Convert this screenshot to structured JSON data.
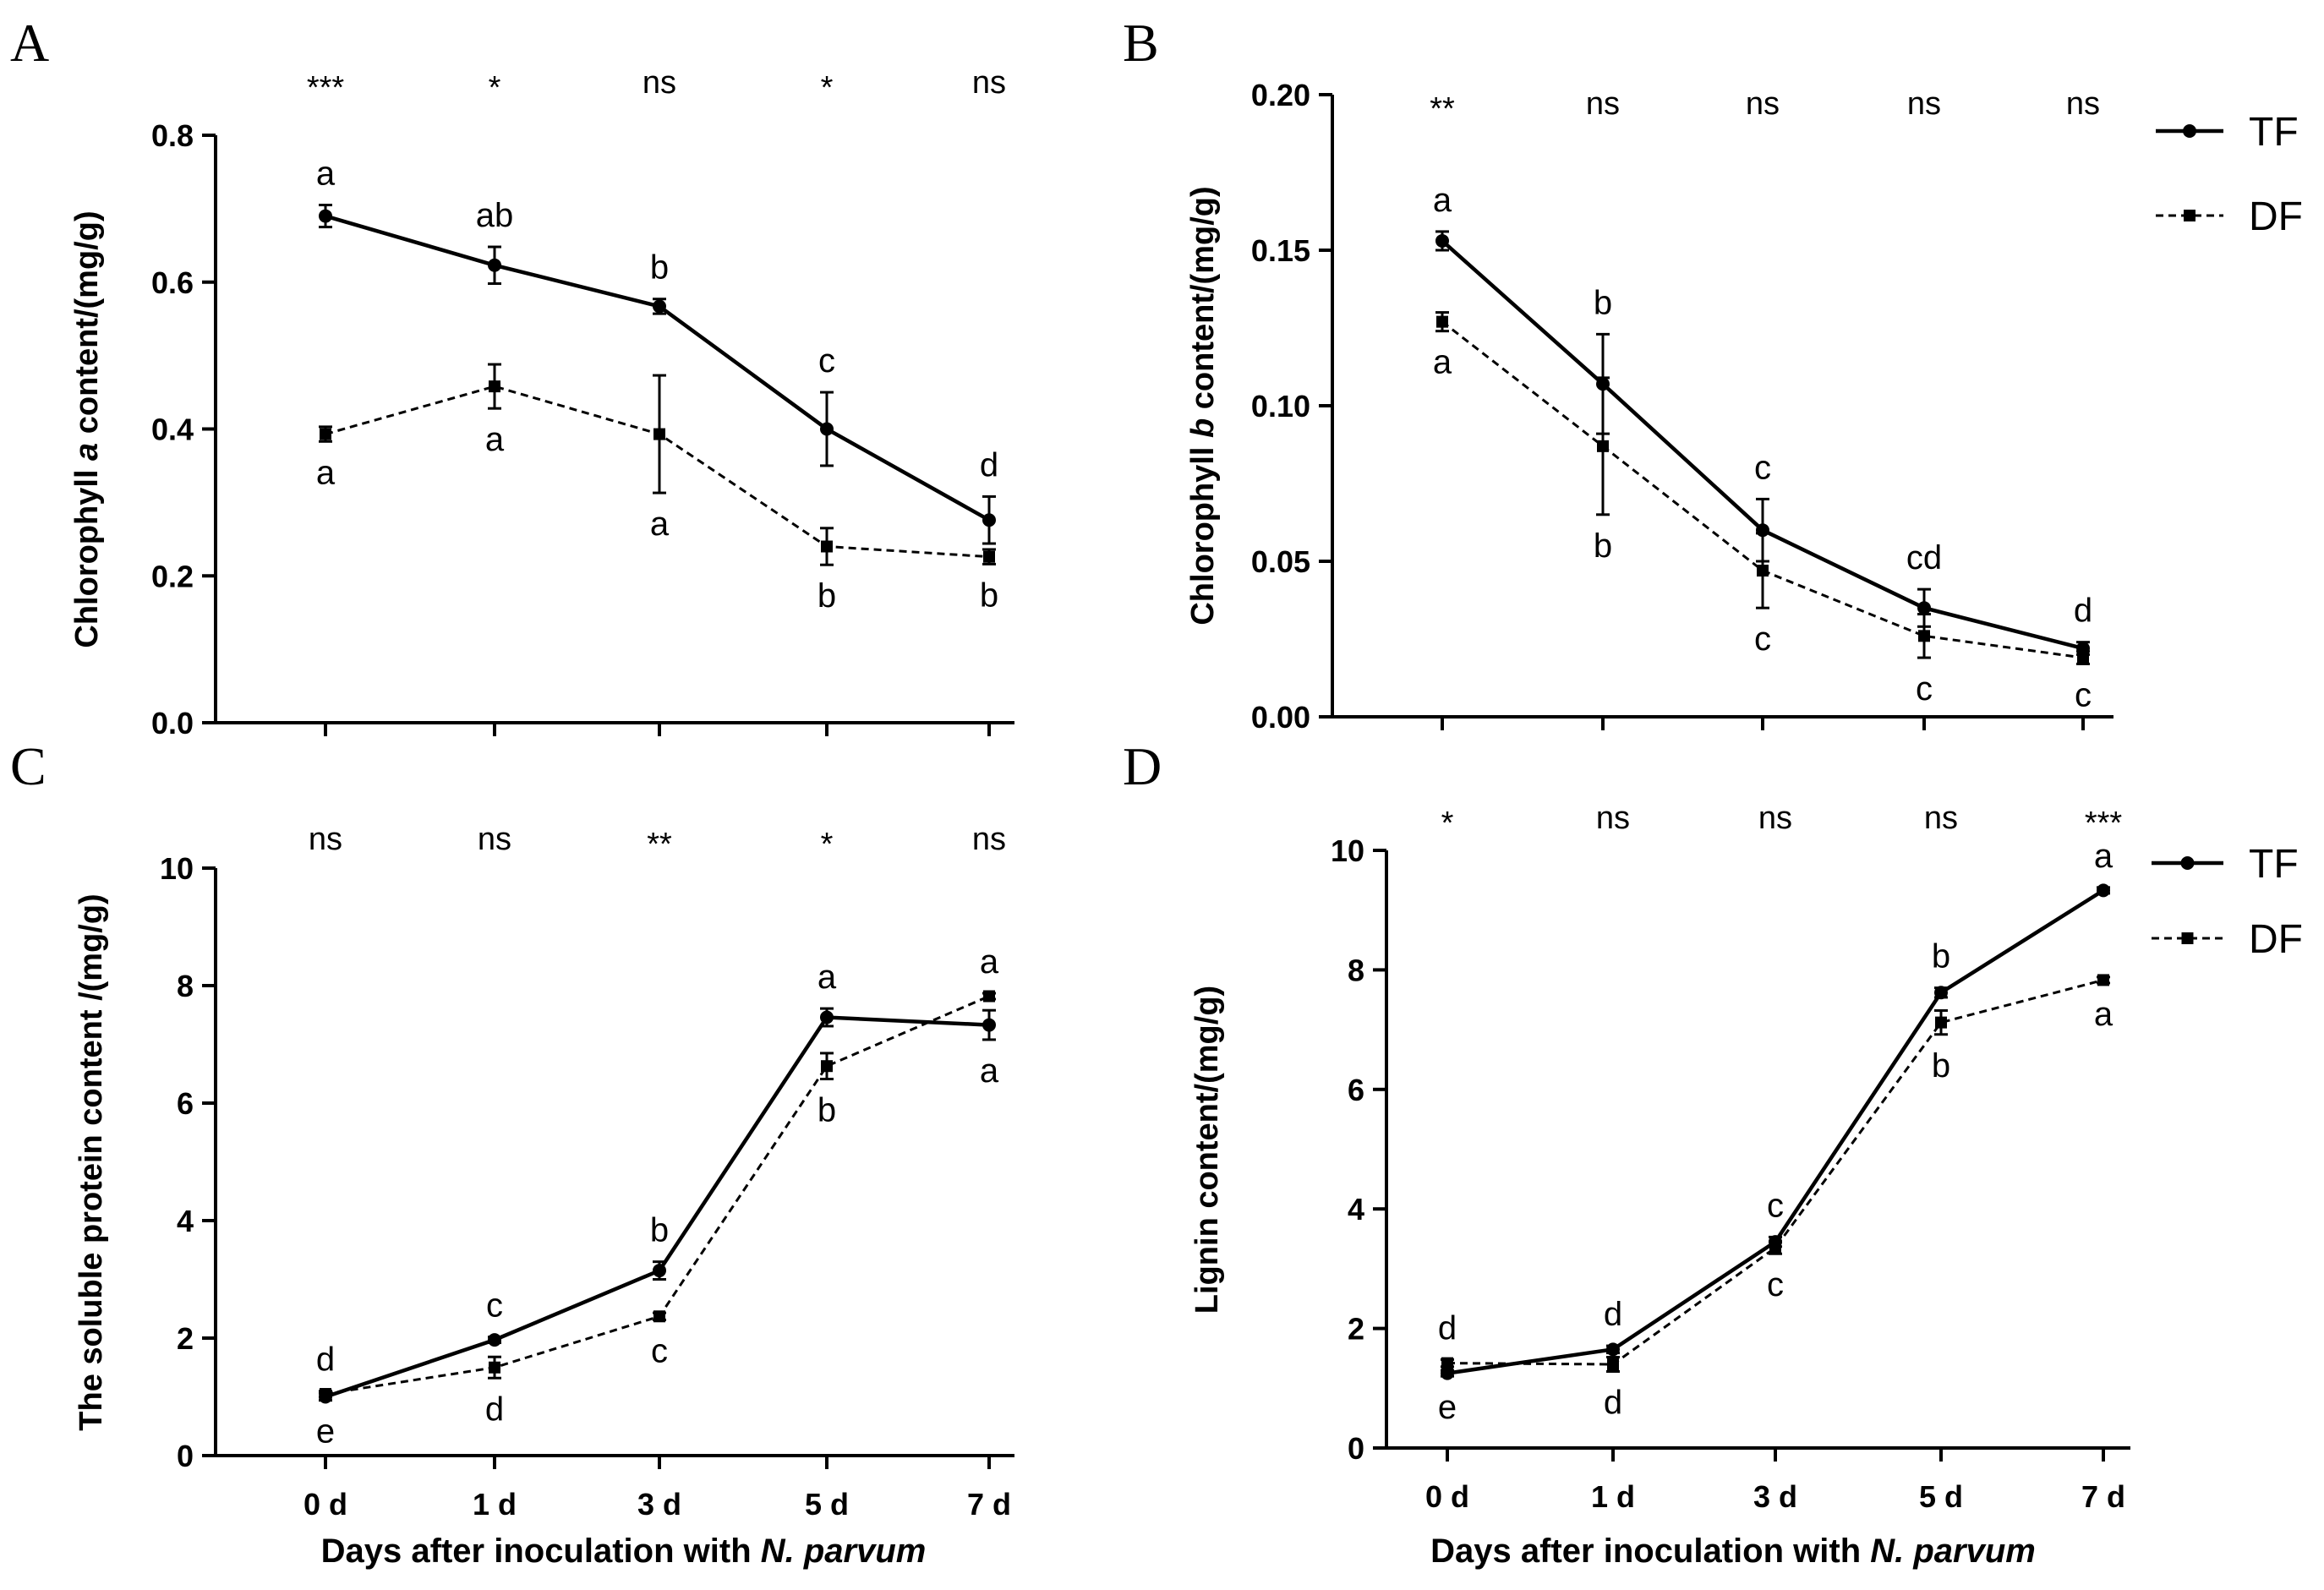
{
  "chart_data": [
    {
      "type": "line",
      "panel": "A",
      "ylabel_parts": [
        {
          "text": "Chlorophyll ",
          "italic": false
        },
        {
          "text": "a",
          "italic": true
        },
        {
          "text": " content/(mg/g)",
          "italic": false
        }
      ],
      "xlabel_parts": [],
      "ylim": [
        0,
        0.8
      ],
      "yticks": [
        "0.0",
        "0.2",
        "0.4",
        "0.6",
        "0.8"
      ],
      "categories": [
        "0 d",
        "1 d",
        "3 d",
        "5 d",
        "7 d"
      ],
      "show_xtick_labels": false,
      "significance": [
        "***",
        "*",
        "ns",
        "*",
        "ns"
      ],
      "series": [
        {
          "name": "TF",
          "style": "solid",
          "marker": "circle",
          "values": [
            0.69,
            0.623,
            0.567,
            0.4,
            0.276
          ],
          "errors": [
            0.015,
            0.025,
            0.01,
            0.05,
            0.032
          ],
          "letters": [
            "a",
            "ab",
            "b",
            "c",
            "d"
          ]
        },
        {
          "name": "DF",
          "style": "dashed",
          "marker": "square",
          "values": [
            0.393,
            0.458,
            0.393,
            0.24,
            0.226
          ],
          "errors": [
            0.01,
            0.03,
            0.08,
            0.025,
            0.01
          ],
          "letters": [
            "a",
            "a",
            "a",
            "b",
            "b"
          ]
        }
      ],
      "show_legend": false
    },
    {
      "type": "line",
      "panel": "B",
      "ylabel_parts": [
        {
          "text": "Chlorophyll ",
          "italic": false
        },
        {
          "text": "b",
          "italic": true
        },
        {
          "text": " content/(mg/g)",
          "italic": false
        }
      ],
      "xlabel_parts": [],
      "ylim": [
        0,
        0.2
      ],
      "yticks": [
        "0.00",
        "0.05",
        "0.10",
        "0.15",
        "0.20"
      ],
      "categories": [
        "0 d",
        "1 d",
        "3 d",
        "5 d",
        "7 d"
      ],
      "show_xtick_labels": false,
      "significance": [
        "**",
        "ns",
        "ns",
        "ns",
        "ns"
      ],
      "series": [
        {
          "name": "TF",
          "style": "solid",
          "marker": "circle",
          "values": [
            0.153,
            0.107,
            0.06,
            0.035,
            0.022
          ],
          "errors": [
            0.003,
            0.016,
            0.01,
            0.006,
            0.002
          ],
          "letters": [
            "a",
            "b",
            "c",
            "cd",
            "d"
          ]
        },
        {
          "name": "DF",
          "style": "dashed",
          "marker": "square",
          "values": [
            0.127,
            0.087,
            0.047,
            0.026,
            0.019
          ],
          "errors": [
            0.003,
            0.022,
            0.012,
            0.007,
            0.002
          ],
          "letters": [
            "a",
            "b",
            "c",
            "c",
            "c"
          ]
        }
      ],
      "show_legend": true
    },
    {
      "type": "line",
      "panel": "C",
      "ylabel_parts": [
        {
          "text": "The soluble protein content /(mg/g)",
          "italic": false
        }
      ],
      "xlabel_parts": [
        {
          "text": "Days after inoculation with ",
          "italic": false
        },
        {
          "text": "N. parvum",
          "italic": true
        }
      ],
      "ylim": [
        0,
        10
      ],
      "yticks": [
        "0",
        "2",
        "4",
        "6",
        "8",
        "10"
      ],
      "categories": [
        "0 d",
        "1 d",
        "3 d",
        "5 d",
        "7 d"
      ],
      "show_xtick_labels": true,
      "significance": [
        "ns",
        "ns",
        "**",
        "*",
        "ns"
      ],
      "series": [
        {
          "name": "TF",
          "style": "solid",
          "marker": "circle",
          "values": [
            1.0,
            1.97,
            3.15,
            7.46,
            7.33
          ],
          "errors": [
            0.06,
            0.05,
            0.15,
            0.15,
            0.25
          ],
          "letters": [
            "e",
            "c",
            "b",
            "a",
            "a"
          ]
        },
        {
          "name": "DF",
          "style": "dashed",
          "marker": "square",
          "values": [
            1.05,
            1.5,
            2.37,
            6.63,
            7.82
          ],
          "errors": [
            0.05,
            0.18,
            0.06,
            0.22,
            0.05
          ],
          "letters": [
            "d",
            "d",
            "c",
            "b",
            "a"
          ]
        }
      ],
      "show_legend": false
    },
    {
      "type": "line",
      "panel": "D",
      "ylabel_parts": [
        {
          "text": "Lignin content/(mg/g)",
          "italic": false
        }
      ],
      "xlabel_parts": [
        {
          "text": "Days after inoculation with ",
          "italic": false
        },
        {
          "text": "N. parvum",
          "italic": true
        }
      ],
      "ylim": [
        0,
        10
      ],
      "yticks": [
        "0",
        "2",
        "4",
        "6",
        "8",
        "10"
      ],
      "categories": [
        "0 d",
        "1 d",
        "3 d",
        "5 d",
        "7 d"
      ],
      "show_xtick_labels": true,
      "significance": [
        "*",
        "ns",
        "ns",
        "ns",
        "***"
      ],
      "series": [
        {
          "name": "TF",
          "style": "solid",
          "marker": "circle",
          "values": [
            1.25,
            1.65,
            3.45,
            7.62,
            9.33
          ],
          "errors": [
            0.05,
            0.06,
            0.08,
            0.08,
            0.05
          ],
          "letters": [
            "e",
            "d",
            "c",
            "b",
            "a"
          ]
        },
        {
          "name": "DF",
          "style": "dashed",
          "marker": "square",
          "values": [
            1.42,
            1.4,
            3.35,
            7.12,
            7.83
          ],
          "errors": [
            0.06,
            0.12,
            0.1,
            0.2,
            0.05
          ],
          "letters": [
            "d",
            "d",
            "c",
            "b",
            "a"
          ]
        }
      ],
      "show_legend": true
    }
  ]
}
